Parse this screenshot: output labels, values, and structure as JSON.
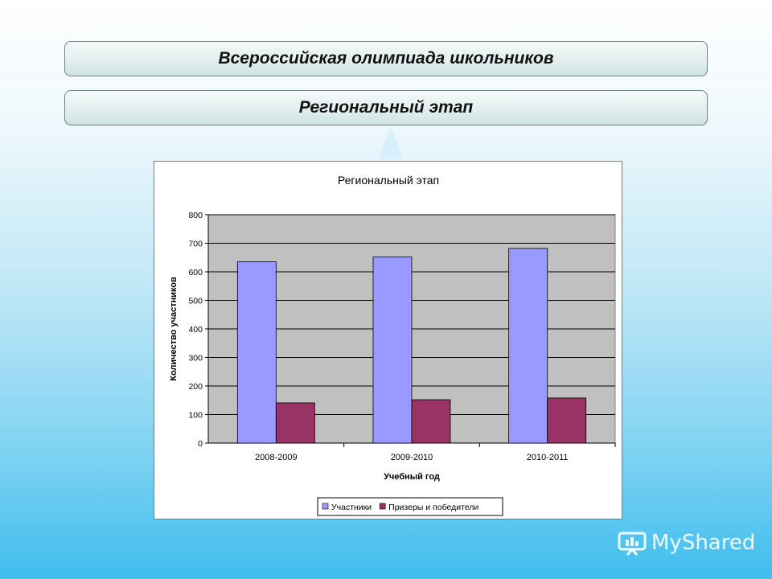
{
  "header": {
    "title": "Всероссийская олимпиада школьников",
    "subtitle": "Региональный этап"
  },
  "watermark": {
    "text": "MyShared"
  },
  "colors": {
    "participants": "#9999ff",
    "winners": "#993366",
    "plot_background": "#c0c0c0"
  },
  "chart_data": {
    "type": "bar",
    "title": "Региональный этап",
    "xlabel": "Учебный год",
    "ylabel": "Количество участников",
    "categories": [
      "2008-2009",
      "2009-2010",
      "2010-2011"
    ],
    "series": [
      {
        "name": "Участники",
        "values": [
          635,
          652,
          682
        ]
      },
      {
        "name": "Призеры и победители",
        "values": [
          141,
          152,
          158
        ]
      }
    ],
    "ylim": [
      0,
      800
    ],
    "yticks": [
      0,
      100,
      200,
      300,
      400,
      500,
      600,
      700,
      800
    ],
    "grid": true,
    "legend": "bottom"
  }
}
